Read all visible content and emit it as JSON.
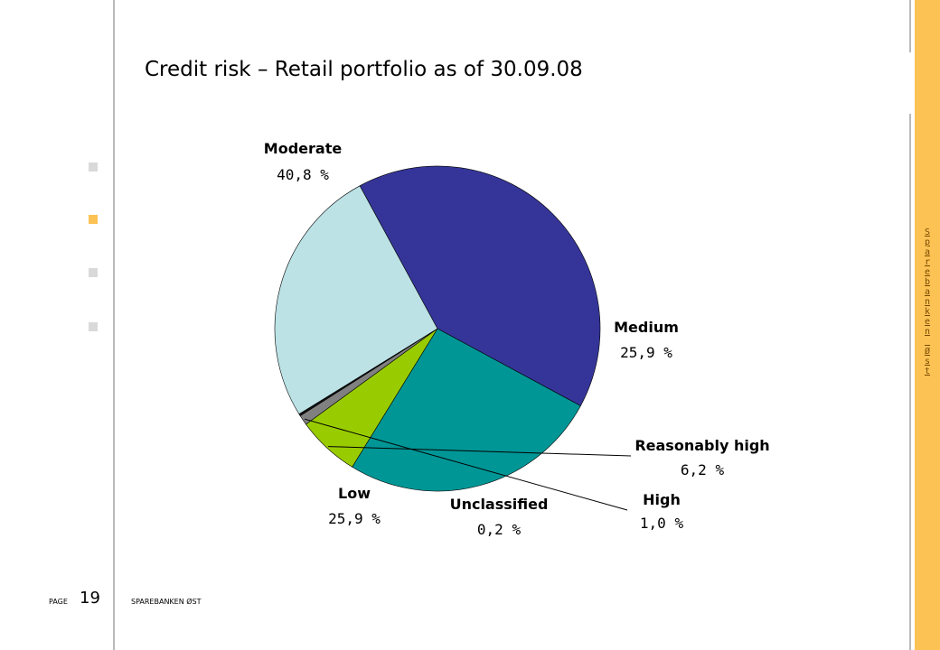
{
  "title": "Credit risk – Retail portfolio as of 30.09.08",
  "footer": {
    "page_label": "PAGE",
    "page_number": "19",
    "company": "SPAREBANKEN ØST"
  },
  "brand": "Sparebanken Øst",
  "colors": {
    "nav_square": "#d9d9d9",
    "nav_square_active": "#fcc254",
    "accent_stripe": "#fcc254"
  },
  "chart_data": {
    "type": "pie",
    "title": "Credit risk – Retail portfolio as of 30.09.08",
    "slices": [
      {
        "label": "Moderate",
        "value_label": "40,8 %",
        "value": 40.8,
        "color": "#353599"
      },
      {
        "label": "Medium",
        "value_label": "25,9 %",
        "value": 25.9,
        "color": "#009696"
      },
      {
        "label": "Reasonably high",
        "value_label": "6,2 %",
        "value": 6.2,
        "color": "#99cc00"
      },
      {
        "label": "High",
        "value_label": "1,0 %",
        "value": 1.0,
        "color": "#808080"
      },
      {
        "label": "Unclassified",
        "value_label": "0,2 %",
        "value": 0.2,
        "color": "#111111"
      },
      {
        "label": "Low",
        "value_label": "25,9 %",
        "value": 25.9,
        "color": "#bce2e6"
      }
    ],
    "legend": "none"
  }
}
